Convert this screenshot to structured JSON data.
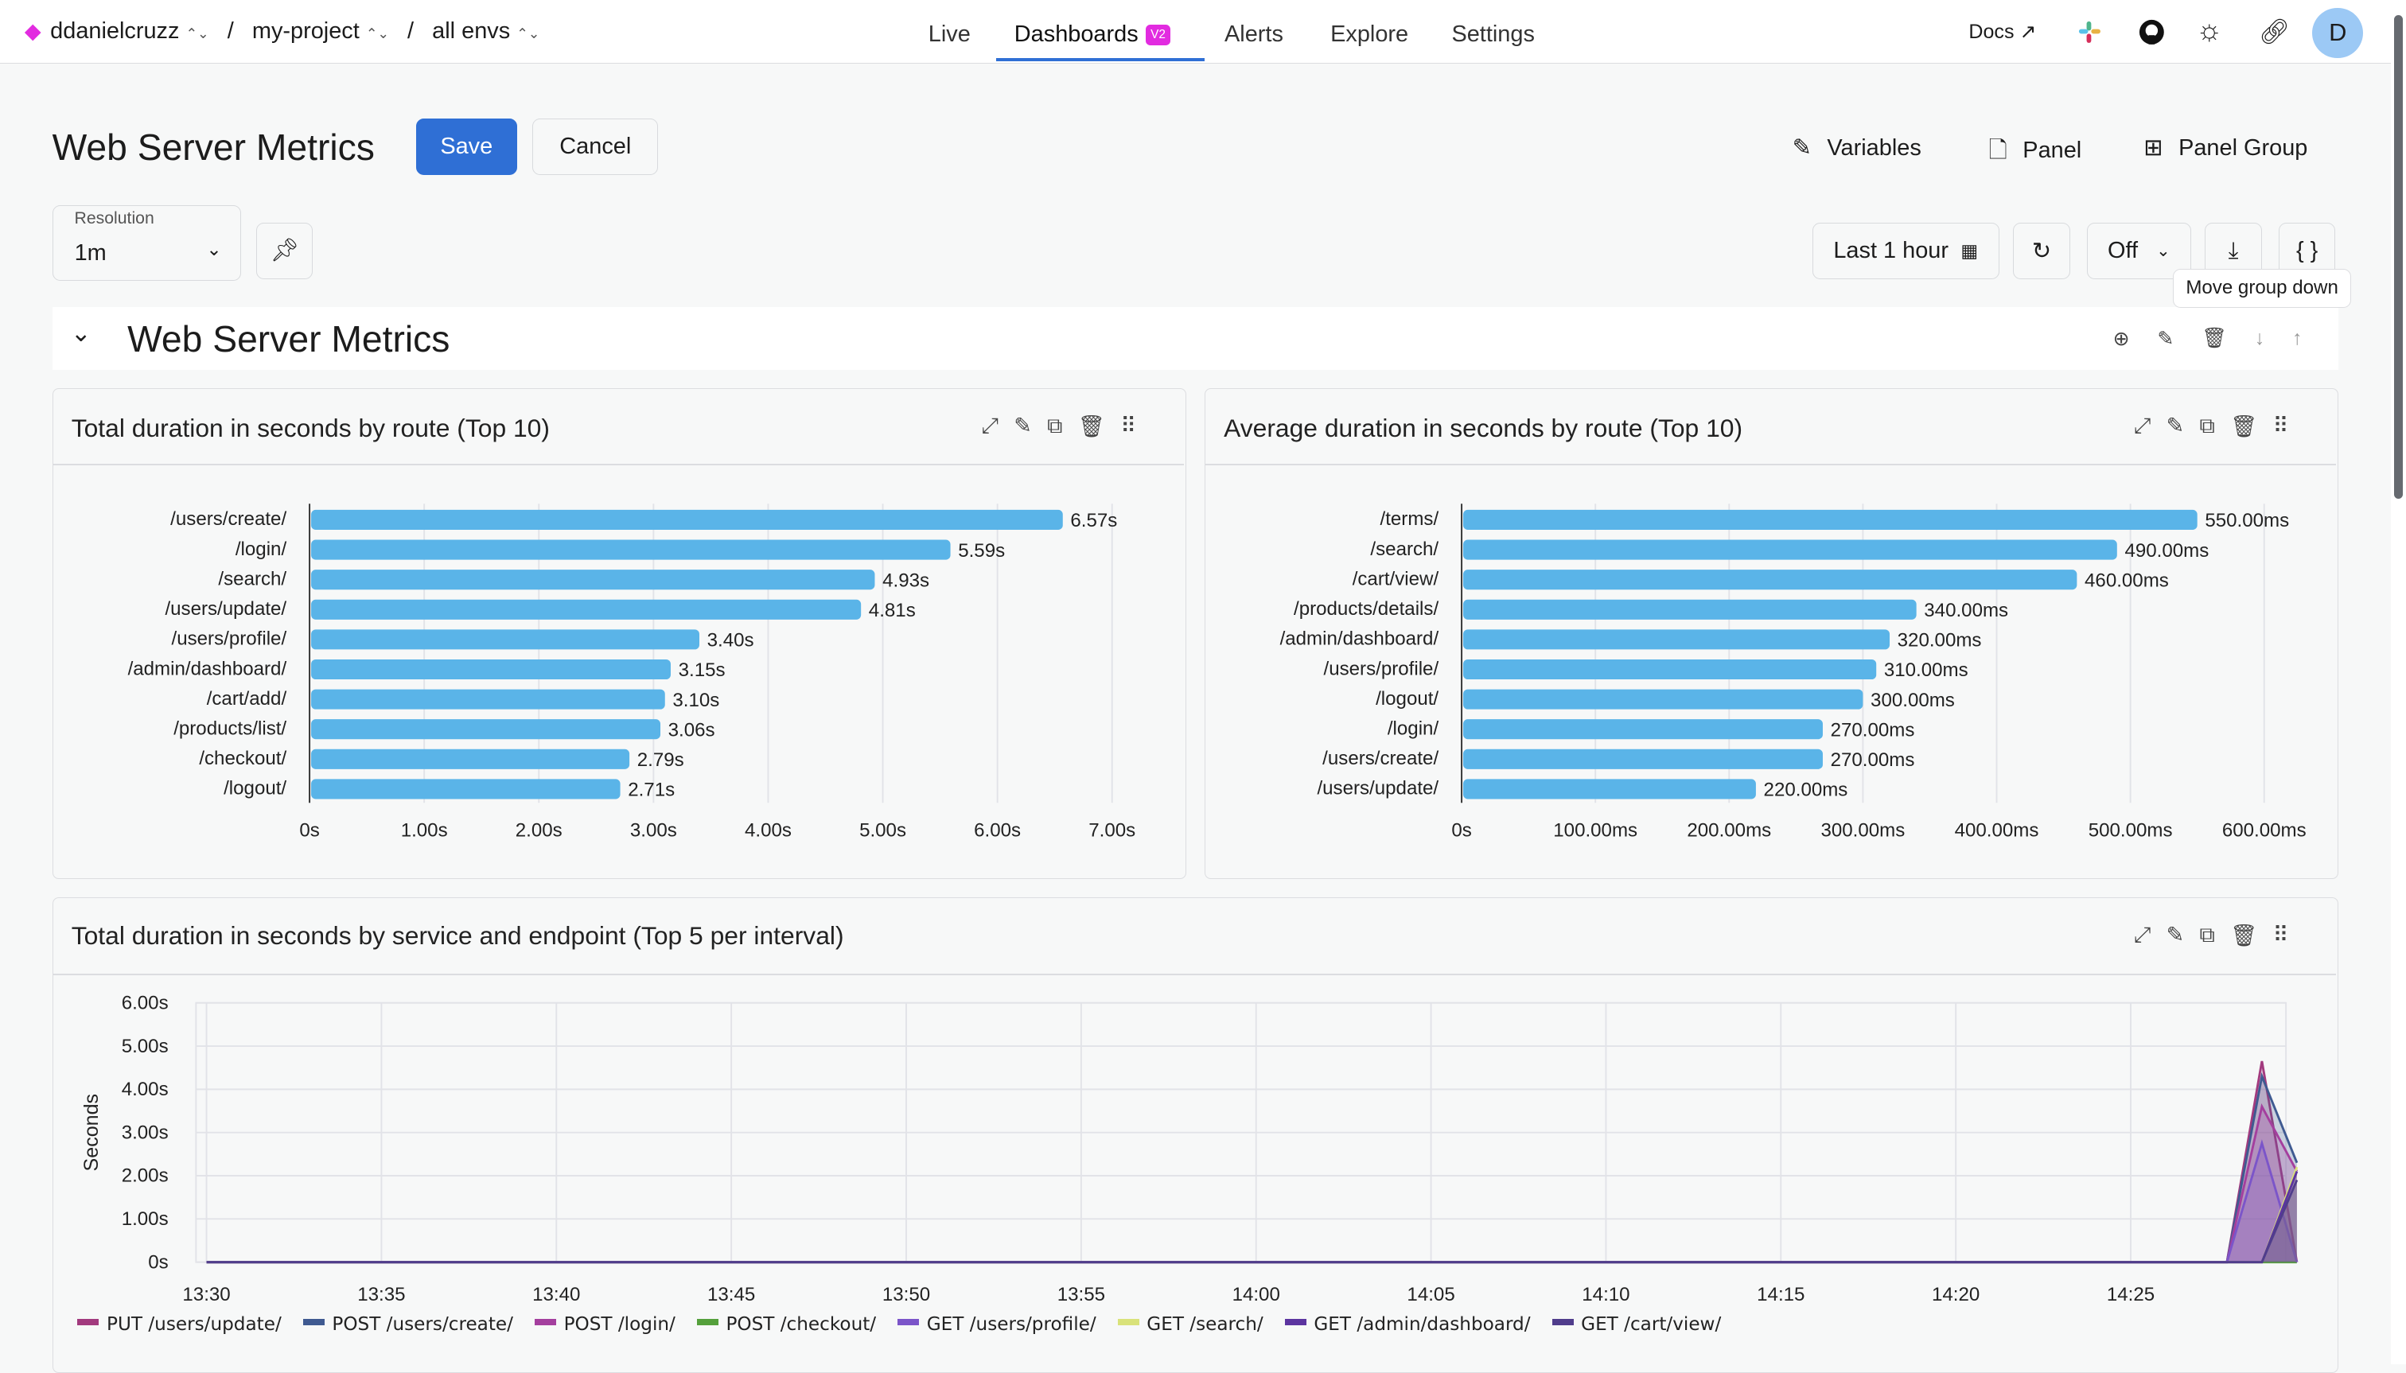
{
  "header": {
    "breadcrumb": [
      {
        "label": "ddanielcruzz"
      },
      {
        "label": "my-project"
      },
      {
        "label": "all envs"
      }
    ],
    "separator": "/",
    "nav": [
      {
        "label": "Live"
      },
      {
        "label": "Dashboards",
        "badge": "V2",
        "active": true
      },
      {
        "label": "Alerts"
      },
      {
        "label": "Explore"
      },
      {
        "label": "Settings"
      }
    ],
    "docs_label": "Docs",
    "icons": [
      "external-link-icon",
      "slack-icon",
      "github-icon",
      "sun-icon",
      "link-icon"
    ],
    "avatar": "D",
    "brand_color": "#e22be0"
  },
  "toolbar": {
    "title": "Web Server Metrics",
    "save_label": "Save",
    "cancel_label": "Cancel",
    "variables_label": "Variables",
    "panel_label": "Panel",
    "panel_group_label": "Panel Group",
    "resolution_label": "Resolution",
    "resolution_value": "1m",
    "time_range": "Last 1 hour",
    "refresh_value": "Off",
    "json_label": "{ }",
    "tooltip": "Move group down"
  },
  "group": {
    "title": "Web Server Metrics"
  },
  "chart_data": [
    {
      "type": "bar",
      "orientation": "horizontal",
      "title": "Total duration in seconds by route (Top 10)",
      "categories": [
        "/users/create/",
        "/login/",
        "/search/",
        "/users/update/",
        "/users/profile/",
        "/admin/dashboard/",
        "/cart/add/",
        "/products/list/",
        "/checkout/",
        "/logout/"
      ],
      "values": [
        6.57,
        5.59,
        4.93,
        4.81,
        3.4,
        3.15,
        3.1,
        3.06,
        2.79,
        2.71
      ],
      "data_labels": [
        "6.57s",
        "5.59s",
        "4.93s",
        "4.81s",
        "3.40s",
        "3.15s",
        "3.10s",
        "3.06s",
        "2.79s",
        "2.71s"
      ],
      "xlim": [
        0,
        7
      ],
      "xticks": [
        "0s",
        "1.00s",
        "2.00s",
        "3.00s",
        "4.00s",
        "5.00s",
        "6.00s",
        "7.00s"
      ],
      "color": "#5ab4e8",
      "grid": true
    },
    {
      "type": "bar",
      "orientation": "horizontal",
      "title": "Average duration in seconds by route (Top 10)",
      "categories": [
        "/terms/",
        "/search/",
        "/cart/view/",
        "/products/details/",
        "/admin/dashboard/",
        "/users/profile/",
        "/logout/",
        "/login/",
        "/users/create/",
        "/users/update/"
      ],
      "values": [
        550,
        490,
        460,
        340,
        320,
        310,
        300,
        270,
        270,
        220
      ],
      "data_labels": [
        "550.00ms",
        "490.00ms",
        "460.00ms",
        "340.00ms",
        "320.00ms",
        "310.00ms",
        "300.00ms",
        "270.00ms",
        "270.00ms",
        "220.00ms"
      ],
      "xlim": [
        0,
        600
      ],
      "xticks": [
        "0s",
        "100.00ms",
        "200.00ms",
        "300.00ms",
        "400.00ms",
        "500.00ms",
        "600.00ms"
      ],
      "color": "#5ab4e8",
      "grid": true
    },
    {
      "type": "area",
      "title": "Total duration in seconds by service and endpoint (Top 5 per interval)",
      "ylabel": "Seconds",
      "ylim": [
        0,
        6
      ],
      "yticks": [
        "0s",
        "1.00s",
        "2.00s",
        "3.00s",
        "4.00s",
        "5.00s",
        "6.00s"
      ],
      "xticks": [
        "13:30",
        "13:35",
        "13:40",
        "13:45",
        "13:50",
        "13:55",
        "14:00",
        "14:05",
        "14:10",
        "14:15",
        "14:20",
        "14:25"
      ],
      "x": [
        "13:30",
        "14:27:45",
        "14:28:45",
        "14:29:45"
      ],
      "legend_position": "bottom",
      "grid": true,
      "series": [
        {
          "name": "PUT /users/update/",
          "color": "#a23a7e",
          "values": [
            0,
            0,
            4.65,
            0
          ]
        },
        {
          "name": "POST /users/create/",
          "color": "#3f5a91",
          "values": [
            0,
            0,
            4.3,
            2.3
          ]
        },
        {
          "name": "POST /login/",
          "color": "#a43f9e",
          "values": [
            0,
            0,
            3.6,
            2.1
          ]
        },
        {
          "name": "POST /checkout/",
          "color": "#55a03c",
          "values": [
            0,
            0,
            0,
            0
          ]
        },
        {
          "name": "GET /users/profile/",
          "color": "#7b55c9",
          "values": [
            0,
            0,
            2.75,
            0
          ]
        },
        {
          "name": "GET /search/",
          "color": "#d9e27a",
          "values": [
            0,
            0,
            0,
            2.2
          ]
        },
        {
          "name": "GET /admin/dashboard/",
          "color": "#5c35a0",
          "values": [
            0,
            0,
            0,
            2.1
          ]
        },
        {
          "name": "GET /cart/view/",
          "color": "#503d8c",
          "values": [
            0,
            0,
            0,
            1.9
          ]
        }
      ]
    }
  ]
}
